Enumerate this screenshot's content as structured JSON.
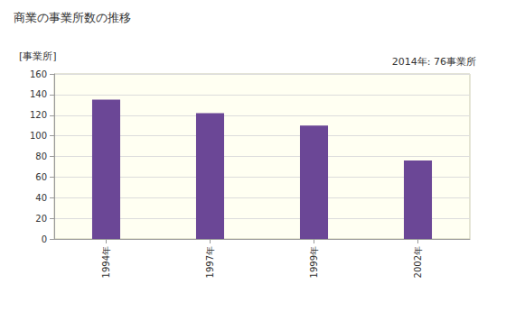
{
  "chart_data": {
    "type": "bar",
    "title": "商業の事業所数の推移",
    "ylabel": "[事業所]",
    "annotations": [
      "2014年: 76事業所"
    ],
    "categories": [
      "1994年",
      "1997年",
      "1999年",
      "2002年"
    ],
    "values": [
      135,
      122,
      110,
      76
    ],
    "color": "#6b4796",
    "ylim": [
      0,
      160
    ],
    "yticks": [
      0,
      20,
      40,
      60,
      80,
      100,
      120,
      140,
      160
    ],
    "grid": true
  }
}
